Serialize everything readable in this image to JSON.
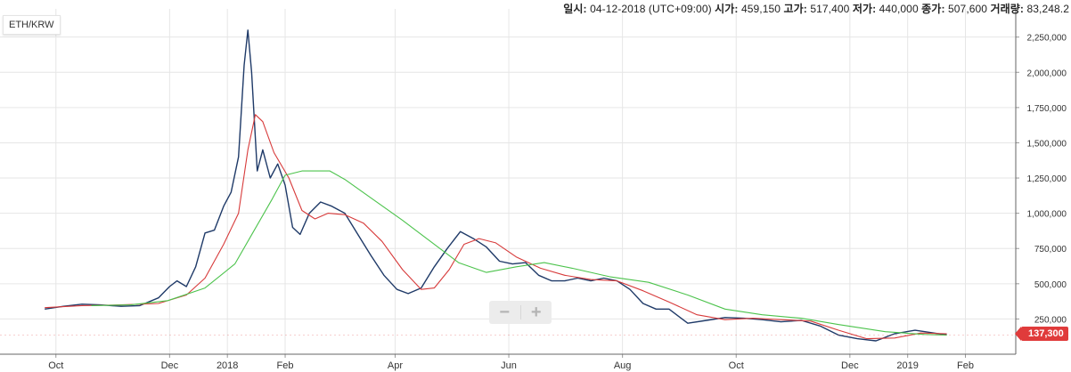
{
  "info": {
    "date_label": "일시:",
    "date_value": "04-12-2018 (UTC+09:00)",
    "open_label": "시가:",
    "open_value": "459,150",
    "high_label": "고가:",
    "high_value": "517,400",
    "low_label": "저가:",
    "low_value": "440,000",
    "close_label": "종가:",
    "close_value": "507,600",
    "volume_label": "거래량:",
    "volume_value": "83,248.2"
  },
  "symbol": "ETH/KRW",
  "zoom": {
    "minus": "−",
    "plus": "+"
  },
  "last_price_label": "137,300",
  "colors": {
    "candle": "#1f3a68",
    "ma_short": "#d73a3a",
    "ma_long": "#4cc34c",
    "grid": "#e6e6e6",
    "last_price": "#e03b3b"
  },
  "chart_data": {
    "type": "line",
    "title": "ETH/KRW",
    "y_ticks": [
      250000,
      500000,
      750000,
      1000000,
      1250000,
      1500000,
      1750000,
      2000000,
      2250000
    ],
    "y_tick_labels": [
      "250,000",
      "500,000",
      "750,000",
      "1,000,000",
      "1,250,000",
      "1,500,000",
      "1,750,000",
      "2,000,000",
      "2,250,000"
    ],
    "ylim": [
      0,
      2450000
    ],
    "xlim": [
      "2017-09-01",
      "2019-02-28"
    ],
    "x_ticks": [
      {
        "label": "Oct",
        "date": "2017-10-01"
      },
      {
        "label": "Dec",
        "date": "2017-12-01"
      },
      {
        "label": "2018",
        "date": "2018-01-01"
      },
      {
        "label": "Feb",
        "date": "2018-02-01"
      },
      {
        "label": "Apr",
        "date": "2018-04-01"
      },
      {
        "label": "Jun",
        "date": "2018-06-01"
      },
      {
        "label": "Aug",
        "date": "2018-08-01"
      },
      {
        "label": "Oct",
        "date": "2018-10-01"
      },
      {
        "label": "Dec",
        "date": "2018-12-01"
      },
      {
        "label": "2019",
        "date": "2019-01-01"
      },
      {
        "label": "Feb",
        "date": "2019-02-01"
      }
    ],
    "grid": true,
    "last_price": 137300,
    "series": [
      {
        "role": "price",
        "points": [
          [
            "2017-09-25",
            320000
          ],
          [
            "2017-10-05",
            340000
          ],
          [
            "2017-10-15",
            355000
          ],
          [
            "2017-10-25",
            350000
          ],
          [
            "2017-11-05",
            340000
          ],
          [
            "2017-11-15",
            345000
          ],
          [
            "2017-11-25",
            400000
          ],
          [
            "2017-12-01",
            480000
          ],
          [
            "2017-12-05",
            520000
          ],
          [
            "2017-12-10",
            480000
          ],
          [
            "2017-12-15",
            620000
          ],
          [
            "2017-12-20",
            860000
          ],
          [
            "2017-12-25",
            880000
          ],
          [
            "2017-12-30",
            1050000
          ],
          [
            "2018-01-03",
            1150000
          ],
          [
            "2018-01-07",
            1400000
          ],
          [
            "2018-01-10",
            2050000
          ],
          [
            "2018-01-12",
            2300000
          ],
          [
            "2018-01-14",
            2000000
          ],
          [
            "2018-01-17",
            1300000
          ],
          [
            "2018-01-20",
            1450000
          ],
          [
            "2018-01-24",
            1250000
          ],
          [
            "2018-01-28",
            1350000
          ],
          [
            "2018-02-01",
            1200000
          ],
          [
            "2018-02-05",
            900000
          ],
          [
            "2018-02-09",
            850000
          ],
          [
            "2018-02-14",
            1000000
          ],
          [
            "2018-02-20",
            1080000
          ],
          [
            "2018-02-26",
            1050000
          ],
          [
            "2018-03-05",
            1000000
          ],
          [
            "2018-03-12",
            850000
          ],
          [
            "2018-03-19",
            700000
          ],
          [
            "2018-03-26",
            560000
          ],
          [
            "2018-04-02",
            460000
          ],
          [
            "2018-04-08",
            430000
          ],
          [
            "2018-04-15",
            470000
          ],
          [
            "2018-04-22",
            620000
          ],
          [
            "2018-04-29",
            750000
          ],
          [
            "2018-05-06",
            870000
          ],
          [
            "2018-05-13",
            820000
          ],
          [
            "2018-05-20",
            760000
          ],
          [
            "2018-05-27",
            660000
          ],
          [
            "2018-06-03",
            640000
          ],
          [
            "2018-06-10",
            650000
          ],
          [
            "2018-06-17",
            560000
          ],
          [
            "2018-06-24",
            520000
          ],
          [
            "2018-07-01",
            520000
          ],
          [
            "2018-07-08",
            540000
          ],
          [
            "2018-07-15",
            520000
          ],
          [
            "2018-07-22",
            540000
          ],
          [
            "2018-07-29",
            520000
          ],
          [
            "2018-08-05",
            460000
          ],
          [
            "2018-08-12",
            360000
          ],
          [
            "2018-08-19",
            320000
          ],
          [
            "2018-08-26",
            320000
          ],
          [
            "2018-09-05",
            220000
          ],
          [
            "2018-09-15",
            240000
          ],
          [
            "2018-09-25",
            260000
          ],
          [
            "2018-10-05",
            255000
          ],
          [
            "2018-10-15",
            245000
          ],
          [
            "2018-10-25",
            230000
          ],
          [
            "2018-11-05",
            240000
          ],
          [
            "2018-11-15",
            200000
          ],
          [
            "2018-11-25",
            135000
          ],
          [
            "2018-12-05",
            110000
          ],
          [
            "2018-12-15",
            95000
          ],
          [
            "2018-12-25",
            145000
          ],
          [
            "2019-01-05",
            170000
          ],
          [
            "2019-01-15",
            150000
          ],
          [
            "2019-01-22",
            137300
          ]
        ]
      },
      {
        "role": "moving-average-short",
        "points": [
          [
            "2017-09-25",
            330000
          ],
          [
            "2017-10-15",
            345000
          ],
          [
            "2017-11-05",
            350000
          ],
          [
            "2017-11-25",
            360000
          ],
          [
            "2017-12-10",
            420000
          ],
          [
            "2017-12-20",
            540000
          ],
          [
            "2017-12-30",
            780000
          ],
          [
            "2018-01-07",
            1000000
          ],
          [
            "2018-01-12",
            1450000
          ],
          [
            "2018-01-16",
            1700000
          ],
          [
            "2018-01-20",
            1650000
          ],
          [
            "2018-01-26",
            1430000
          ],
          [
            "2018-02-03",
            1250000
          ],
          [
            "2018-02-10",
            1020000
          ],
          [
            "2018-02-17",
            960000
          ],
          [
            "2018-02-24",
            1000000
          ],
          [
            "2018-03-05",
            990000
          ],
          [
            "2018-03-15",
            930000
          ],
          [
            "2018-03-25",
            800000
          ],
          [
            "2018-04-05",
            600000
          ],
          [
            "2018-04-15",
            460000
          ],
          [
            "2018-04-22",
            470000
          ],
          [
            "2018-04-30",
            600000
          ],
          [
            "2018-05-08",
            780000
          ],
          [
            "2018-05-16",
            820000
          ],
          [
            "2018-05-25",
            790000
          ],
          [
            "2018-06-05",
            690000
          ],
          [
            "2018-06-18",
            610000
          ],
          [
            "2018-07-01",
            560000
          ],
          [
            "2018-07-15",
            530000
          ],
          [
            "2018-07-29",
            520000
          ],
          [
            "2018-08-12",
            450000
          ],
          [
            "2018-08-26",
            370000
          ],
          [
            "2018-09-10",
            280000
          ],
          [
            "2018-09-25",
            245000
          ],
          [
            "2018-10-10",
            255000
          ],
          [
            "2018-10-25",
            245000
          ],
          [
            "2018-11-10",
            235000
          ],
          [
            "2018-11-25",
            170000
          ],
          [
            "2018-12-10",
            110000
          ],
          [
            "2018-12-25",
            115000
          ],
          [
            "2019-01-08",
            150000
          ],
          [
            "2019-01-22",
            145000
          ]
        ]
      },
      {
        "role": "moving-average-long",
        "points": [
          [
            "2017-10-20",
            345000
          ],
          [
            "2017-11-10",
            350000
          ],
          [
            "2017-11-30",
            380000
          ],
          [
            "2017-12-20",
            470000
          ],
          [
            "2018-01-05",
            640000
          ],
          [
            "2018-01-15",
            870000
          ],
          [
            "2018-01-25",
            1100000
          ],
          [
            "2018-02-01",
            1270000
          ],
          [
            "2018-02-10",
            1300000
          ],
          [
            "2018-02-25",
            1300000
          ],
          [
            "2018-03-05",
            1240000
          ],
          [
            "2018-03-20",
            1100000
          ],
          [
            "2018-04-05",
            950000
          ],
          [
            "2018-04-20",
            800000
          ],
          [
            "2018-05-05",
            650000
          ],
          [
            "2018-05-20",
            580000
          ],
          [
            "2018-06-05",
            620000
          ],
          [
            "2018-06-20",
            650000
          ],
          [
            "2018-07-05",
            610000
          ],
          [
            "2018-07-25",
            550000
          ],
          [
            "2018-08-15",
            510000
          ],
          [
            "2018-09-05",
            420000
          ],
          [
            "2018-09-25",
            320000
          ],
          [
            "2018-10-15",
            280000
          ],
          [
            "2018-11-05",
            255000
          ],
          [
            "2018-11-25",
            210000
          ],
          [
            "2018-12-20",
            160000
          ],
          [
            "2019-01-10",
            140000
          ],
          [
            "2019-01-22",
            135000
          ]
        ]
      }
    ]
  }
}
